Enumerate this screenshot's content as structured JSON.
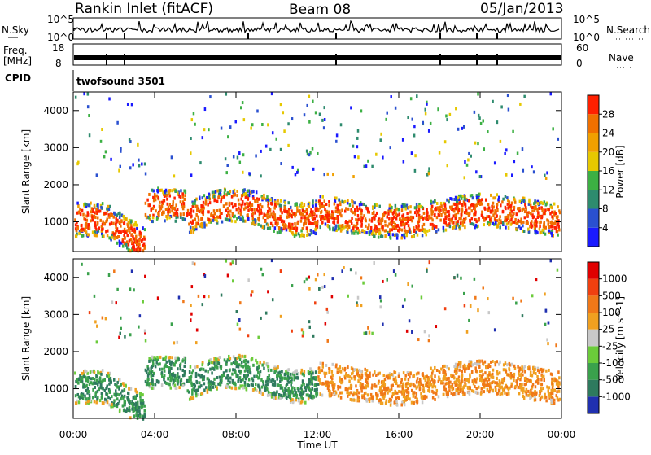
{
  "header": {
    "title": "Rankin Inlet (fitACF)",
    "beam": "Beam 08",
    "date": "05/Jan/2013"
  },
  "aux_panels": {
    "nsky_label": "N.Sky",
    "nsearch_label": "N.Search",
    "nsky_ticks": [
      "10^5",
      "10^0"
    ],
    "nsearch_ticks": [
      "10^5",
      "10^0"
    ],
    "freq_label_line1": "Freq.",
    "freq_label_line2": "[MHz]",
    "freq_ticks": [
      "18",
      "8"
    ],
    "nave_label": "Nave",
    "nave_ticks": [
      "60",
      "0"
    ],
    "cpid_label": "CPID",
    "cpid_value": "twofsound 3501"
  },
  "chart_data": [
    {
      "type": "heatmap",
      "name": "power",
      "ylabel": "Slant Range [km]",
      "ylim": [
        200,
        4500
      ],
      "y_ticks": [
        "4000",
        "3000",
        "2000",
        "1000"
      ],
      "y_tick_values": [
        4000,
        3000,
        2000,
        1000
      ],
      "colorbar_label": "Power [dB]",
      "colorbar_ticks": [
        "28",
        "24",
        "20",
        "16",
        "12",
        "8",
        "4"
      ],
      "colors": [
        "#1a1aff",
        "#2a50d0",
        "#2e8b6e",
        "#3cb043",
        "#e6c800",
        "#f0a000",
        "#f07000",
        "#ff2000"
      ]
    },
    {
      "type": "heatmap",
      "name": "velocity",
      "ylabel": "Slant Range [km]",
      "ylim": [
        200,
        4500
      ],
      "y_ticks": [
        "4000",
        "3000",
        "2000",
        "1000"
      ],
      "y_tick_values": [
        4000,
        3000,
        2000,
        1000
      ],
      "colorbar_label": "Velocity [m s^-1]",
      "colorbar_ticks": [
        "1000",
        "500",
        "100",
        "25",
        "-25",
        "-100",
        "-500",
        "-1000"
      ],
      "colors": [
        "#2030b0",
        "#2e7a5e",
        "#3aa14c",
        "#6bcb3a",
        "#c8c8c8",
        "#f0a020",
        "#f07818",
        "#f04010",
        "#e00000"
      ]
    }
  ],
  "xaxis": {
    "label": "Time UT",
    "ticks": [
      "00:00",
      "04:00",
      "08:00",
      "12:00",
      "16:00",
      "20:00",
      "00:00"
    ],
    "range_hours": [
      0,
      24
    ]
  }
}
